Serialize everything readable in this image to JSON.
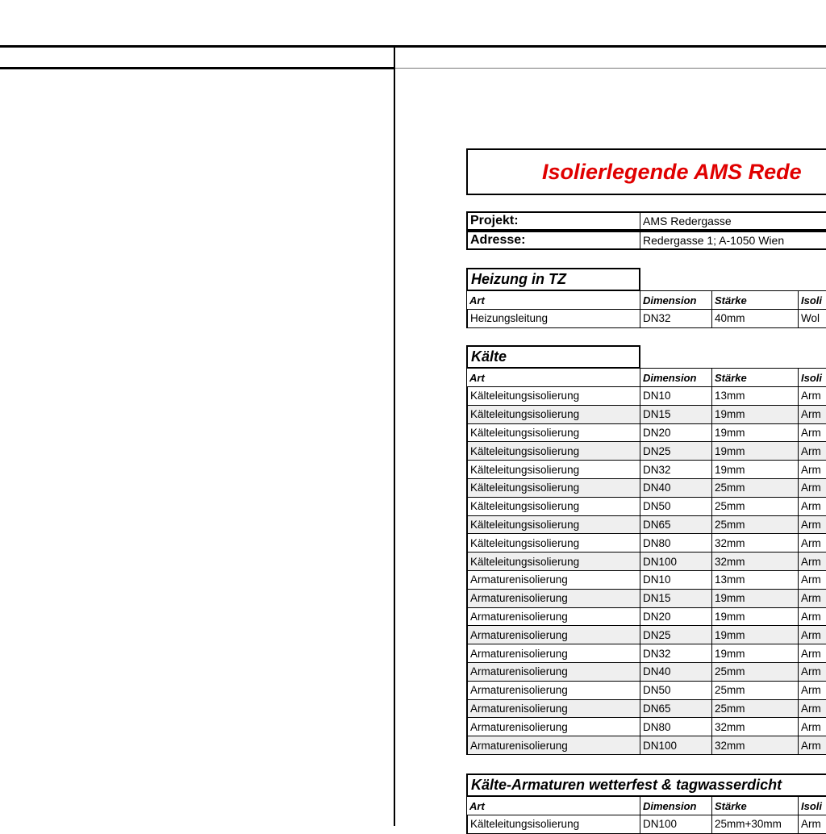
{
  "header": {
    "title": "Isolierlegende AMS Rede"
  },
  "project": {
    "rows": [
      [
        "Projekt:",
        "AMS Redergasse"
      ],
      [
        "Adresse:",
        "Redergasse 1; A-1050 Wien"
      ]
    ]
  },
  "sections": [
    {
      "title": "Heizung in TZ",
      "columns": [
        "Art",
        "Dimension",
        "Stärke",
        "Isoli"
      ],
      "rows": [
        [
          "Heizungsleitung",
          "DN32",
          "40mm",
          "Wol"
        ]
      ]
    },
    {
      "title": "Kälte",
      "columns": [
        "Art",
        "Dimension",
        "Stärke",
        "Isoli"
      ],
      "rows": [
        [
          "Kälteleitungsisolierung",
          "DN10",
          "13mm",
          "Arm"
        ],
        [
          "Kälteleitungsisolierung",
          "DN15",
          "19mm",
          "Arm"
        ],
        [
          "Kälteleitungsisolierung",
          "DN20",
          "19mm",
          "Arm"
        ],
        [
          "Kälteleitungsisolierung",
          "DN25",
          "19mm",
          "Arm"
        ],
        [
          "Kälteleitungsisolierung",
          "DN32",
          "19mm",
          "Arm"
        ],
        [
          "Kälteleitungsisolierung",
          "DN40",
          "25mm",
          "Arm"
        ],
        [
          "Kälteleitungsisolierung",
          "DN50",
          "25mm",
          "Arm"
        ],
        [
          "Kälteleitungsisolierung",
          "DN65",
          "25mm",
          "Arm"
        ],
        [
          "Kälteleitungsisolierung",
          "DN80",
          "32mm",
          "Arm"
        ],
        [
          "Kälteleitungsisolierung",
          "DN100",
          "32mm",
          "Arm"
        ],
        [
          "Armaturenisolierung",
          "DN10",
          "13mm",
          "Arm"
        ],
        [
          "Armaturenisolierung",
          "DN15",
          "19mm",
          "Arm"
        ],
        [
          "Armaturenisolierung",
          "DN20",
          "19mm",
          "Arm"
        ],
        [
          "Armaturenisolierung",
          "DN25",
          "19mm",
          "Arm"
        ],
        [
          "Armaturenisolierung",
          "DN32",
          "19mm",
          "Arm"
        ],
        [
          "Armaturenisolierung",
          "DN40",
          "25mm",
          "Arm"
        ],
        [
          "Armaturenisolierung",
          "DN50",
          "25mm",
          "Arm"
        ],
        [
          "Armaturenisolierung",
          "DN65",
          "25mm",
          "Arm"
        ],
        [
          "Armaturenisolierung",
          "DN80",
          "32mm",
          "Arm"
        ],
        [
          "Armaturenisolierung",
          "DN100",
          "32mm",
          "Arm"
        ]
      ]
    },
    {
      "title": "Kälte-Armaturen wetterfest & tagwasserdicht",
      "columns": [
        "Art",
        "Dimension",
        "Stärke",
        "Isoli"
      ],
      "rows": [
        [
          "Kälteleitungsisolierung",
          "DN100",
          "25mm+30mm",
          "Arm"
        ]
      ]
    }
  ]
}
